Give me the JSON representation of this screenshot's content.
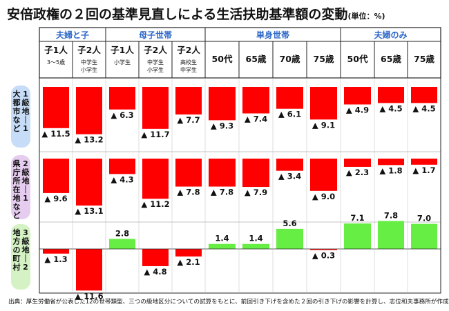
{
  "title": "安倍政権の２回の基準見直しによる生活扶助基準額の変動",
  "unit": "(単位：%)",
  "source": "出典：厚生労働省が公表した12の世帯類型、三つの級地区分についての試算をもとに、前回引き下げを含めた２回の引き下げの影響を計算し、志位和夫事務所が作成",
  "groups": [
    "夫婦と子",
    "母子世帯",
    "単身世帯",
    "夫婦のみ"
  ],
  "columns": [
    {
      "label": "子1人",
      "sub": "3〜5歳"
    },
    {
      "label": "子2人",
      "sub": "中学生\n小学生"
    },
    {
      "label": "子1人",
      "sub": "小学生"
    },
    {
      "label": "子2人",
      "sub": "中学生\n小学生"
    },
    {
      "label": "子2人",
      "sub": "高校生\n中学生"
    },
    {
      "label": "50代",
      "sub": ""
    },
    {
      "label": "65歳",
      "sub": ""
    },
    {
      "label": "70歳",
      "sub": ""
    },
    {
      "label": "75歳",
      "sub": ""
    },
    {
      "label": "50代",
      "sub": ""
    },
    {
      "label": "65歳",
      "sub": ""
    },
    {
      "label": "75歳",
      "sub": ""
    }
  ],
  "chart_data": {
    "type": "bar",
    "negative_marker": "▲",
    "colors": {
      "decrease": "#ff0000",
      "increase": "#66ee44"
    },
    "rows": [
      {
        "label": "1級地-1",
        "place": "大都市など",
        "color": "#c6dcf7",
        "values": [
          -11.5,
          -13.2,
          -6.3,
          -11.7,
          -7.7,
          -9.3,
          -7.4,
          -6.1,
          -9.1,
          -4.9,
          -4.5,
          -4.5
        ]
      },
      {
        "label": "2級地-1",
        "place": "県庁所在地など",
        "color": "#e6cdf0",
        "values": [
          -9.6,
          -13.1,
          -4.3,
          -11.2,
          -7.8,
          -7.8,
          -7.9,
          -3.4,
          -9.0,
          -2.3,
          -1.8,
          -1.7
        ]
      },
      {
        "label": "3級地-2",
        "place": "地方の町村",
        "color": "#d4f2c4",
        "values": [
          -1.3,
          -11.6,
          2.8,
          -4.8,
          -2.1,
          1.4,
          1.4,
          5.6,
          -0.3,
          7.1,
          7.8,
          7.0
        ]
      }
    ]
  }
}
